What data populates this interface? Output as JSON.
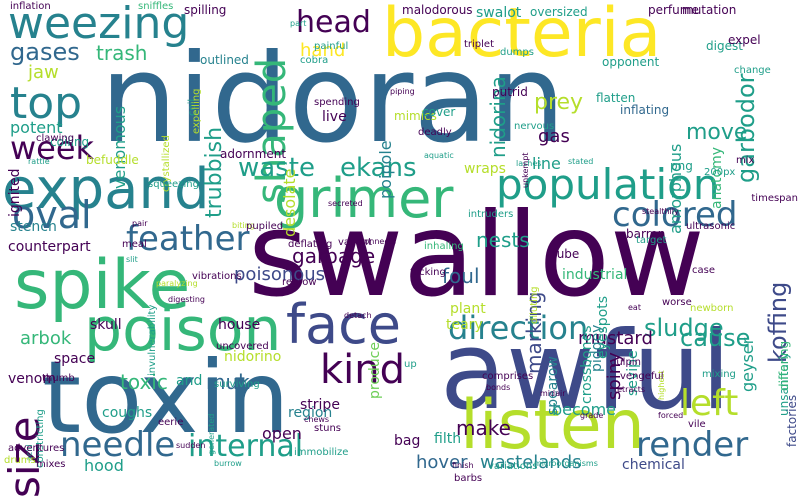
{
  "palette": {
    "dark_purple": "#440154",
    "indigo": "#3e4a89",
    "blue": "#31688e",
    "teal": "#26828e",
    "green_teal": "#1f9e89",
    "green": "#35b779",
    "lime": "#6ece58",
    "yellow_green": "#b5de2b",
    "yellow": "#fde725"
  },
  "words": [
    {
      "text": "nidoran",
      "color": "#31688e",
      "rotate": false
    },
    {
      "text": "swallow",
      "color": "#440154",
      "rotate": false
    },
    {
      "text": "awful",
      "color": "#3e4a89",
      "rotate": false
    },
    {
      "text": "toxin",
      "color": "#31688e",
      "rotate": false
    },
    {
      "text": "bacteria",
      "color": "#fde725",
      "rotate": false
    },
    {
      "text": "expand",
      "color": "#26828e",
      "rotate": false
    },
    {
      "text": "spike",
      "color": "#35b779",
      "rotate": false
    },
    {
      "text": "listen",
      "color": "#b5de2b",
      "rotate": false
    },
    {
      "text": "grimer",
      "color": "#35b779",
      "rotate": false
    },
    {
      "text": "poison",
      "color": "#35b779",
      "rotate": false
    },
    {
      "text": "population",
      "color": "#1f9e89",
      "rotate": false
    },
    {
      "text": "weezing",
      "color": "#26828e",
      "rotate": false
    },
    {
      "text": "face",
      "color": "#3e4a89",
      "rotate": false
    },
    {
      "text": "top",
      "color": "#26828e",
      "rotate": false
    },
    {
      "text": "size",
      "color": "#440154",
      "rotate": true
    },
    {
      "text": "colored",
      "color": "#31688e",
      "rotate": false
    },
    {
      "text": "shaped",
      "color": "#35b779",
      "rotate": true
    },
    {
      "text": "internal",
      "color": "#1f9e89",
      "rotate": false
    },
    {
      "text": "direction",
      "color": "#26828e",
      "rotate": false
    },
    {
      "text": "left",
      "color": "#b5de2b",
      "rotate": false
    },
    {
      "text": "needle",
      "color": "#31688e",
      "rotate": false
    },
    {
      "text": "kind",
      "color": "#440154",
      "rotate": false
    },
    {
      "text": "feather",
      "color": "#31688e",
      "rotate": false
    },
    {
      "text": "oval",
      "color": "#31688e",
      "rotate": false
    },
    {
      "text": "render",
      "color": "#31688e",
      "rotate": false
    },
    {
      "text": "head",
      "color": "#440154",
      "rotate": false
    },
    {
      "text": "week",
      "color": "#440154",
      "rotate": false
    },
    {
      "text": "waste",
      "color": "#1f9e89",
      "rotate": false
    },
    {
      "text": "ekans",
      "color": "#1f9e89",
      "rotate": false
    },
    {
      "text": "gases",
      "color": "#31688e",
      "rotate": false
    },
    {
      "text": "sludge",
      "color": "#1f9e89",
      "rotate": false
    },
    {
      "text": "trash",
      "color": "#35b779",
      "rotate": false
    },
    {
      "text": "hand",
      "color": "#fde725",
      "rotate": false
    },
    {
      "text": "move",
      "color": "#1f9e89",
      "rotate": false
    },
    {
      "text": "prey",
      "color": "#b5de2b",
      "rotate": false
    },
    {
      "text": "garbodor",
      "color": "#1f9e89",
      "rotate": true
    },
    {
      "text": "koffing",
      "color": "#3e4a89",
      "rotate": true
    },
    {
      "text": "cause",
      "color": "#1f9e89",
      "rotate": false
    },
    {
      "text": "garbage",
      "color": "#440154",
      "rotate": false
    },
    {
      "text": "poisonous",
      "color": "#3e4a89",
      "rotate": false
    },
    {
      "text": "arbok",
      "color": "#35b779",
      "rotate": false
    },
    {
      "text": "toxic",
      "color": "#35b779",
      "rotate": false
    },
    {
      "text": "muk",
      "color": "#31688e",
      "rotate": false
    },
    {
      "text": "make",
      "color": "#440154",
      "rotate": false
    },
    {
      "text": "hover",
      "color": "#31688e",
      "rotate": false
    },
    {
      "text": "wastelands",
      "color": "#26828e",
      "rotate": false
    },
    {
      "text": "foul",
      "color": "#31688e",
      "rotate": false
    },
    {
      "text": "nests",
      "color": "#1f9e89",
      "rotate": false
    },
    {
      "text": "marking",
      "color": "#3e4a89",
      "rotate": true
    },
    {
      "text": "mustard",
      "color": "#440154",
      "rotate": false
    },
    {
      "text": "spiny",
      "color": "#440154",
      "rotate": true
    },
    {
      "text": "nidorina",
      "color": "#1f9e89",
      "rotate": true
    },
    {
      "text": "trubbish",
      "color": "#1f9e89",
      "rotate": true
    },
    {
      "text": "desolate",
      "color": "#b5de2b",
      "rotate": true
    },
    {
      "text": "gas",
      "color": "#440154",
      "rotate": false
    },
    {
      "text": "line",
      "color": "#1f9e89",
      "rotate": false
    },
    {
      "text": "jaw",
      "color": "#b5de2b",
      "rotate": false
    },
    {
      "text": "potent",
      "color": "#1f9e89",
      "rotate": false
    },
    {
      "text": "venomous",
      "color": "#1f9e89",
      "rotate": true
    },
    {
      "text": "stench",
      "color": "#26828e",
      "rotate": false
    },
    {
      "text": "counterpart",
      "color": "#440154",
      "rotate": false
    },
    {
      "text": "skull",
      "color": "#440154",
      "rotate": false
    },
    {
      "text": "space",
      "color": "#440154",
      "rotate": false
    },
    {
      "text": "venom",
      "color": "#440154",
      "rotate": false
    },
    {
      "text": "house",
      "color": "#440154",
      "rotate": false
    },
    {
      "text": "nidorino",
      "color": "#b5de2b",
      "rotate": false
    },
    {
      "text": "and",
      "color": "#1f9e89",
      "rotate": false
    },
    {
      "text": "open",
      "color": "#440154",
      "rotate": false
    },
    {
      "text": "stripe",
      "color": "#440154",
      "rotate": false
    },
    {
      "text": "become",
      "color": "#1f9e89",
      "rotate": false
    },
    {
      "text": "bag",
      "color": "#440154",
      "rotate": false
    },
    {
      "text": "hood",
      "color": "#1f9e89",
      "rotate": false
    },
    {
      "text": "coughs",
      "color": "#1f9e89",
      "rotate": false
    },
    {
      "text": "region",
      "color": "#26828e",
      "rotate": false
    },
    {
      "text": "filth",
      "color": "#1f9e89",
      "rotate": false
    },
    {
      "text": "chemical",
      "color": "#3e4a89",
      "rotate": false
    },
    {
      "text": "produce",
      "color": "#6ece58",
      "rotate": true
    },
    {
      "text": "pidgey",
      "color": "#26828e",
      "rotate": true
    },
    {
      "text": "eyespots",
      "color": "#1f9e89",
      "rotate": true
    },
    {
      "text": "crossbones",
      "color": "#1f9e89",
      "rotate": true
    },
    {
      "text": "sevipe",
      "color": "#1f9e89",
      "rotate": true
    },
    {
      "text": "geyser",
      "color": "#1f9e89",
      "rotate": true
    },
    {
      "text": "spearow",
      "color": "#26828e",
      "rotate": true
    },
    {
      "text": "amorphous",
      "color": "#1f9e89",
      "rotate": true
    },
    {
      "text": "anatomy",
      "color": "#35b779",
      "rotate": true
    },
    {
      "text": "poipole",
      "color": "#26828e",
      "rotate": true
    },
    {
      "text": "live",
      "color": "#440154",
      "rotate": false
    },
    {
      "text": "wraps",
      "color": "#b5de2b",
      "rotate": false
    },
    {
      "text": "plant",
      "color": "#b5de2b",
      "rotate": false
    },
    {
      "text": "teary",
      "color": "#b5de2b",
      "rotate": false
    },
    {
      "text": "industrial",
      "color": "#35b779",
      "rotate": false
    },
    {
      "text": "unsanitary",
      "color": "#1f9e89",
      "rotate": true
    },
    {
      "text": "differing",
      "color": "#35b779",
      "rotate": true
    },
    {
      "text": "factories",
      "color": "#3e4a89",
      "rotate": true
    },
    {
      "text": "swalot",
      "color": "#1f9e89",
      "rotate": false
    },
    {
      "text": "putrid",
      "color": "#440154",
      "rotate": false
    },
    {
      "text": "inflating",
      "color": "#31688e",
      "rotate": false
    },
    {
      "text": "opponent",
      "color": "#1f9e89",
      "rotate": false
    },
    {
      "text": "digest",
      "color": "#1f9e89",
      "rotate": false
    },
    {
      "text": "expel",
      "color": "#440154",
      "rotate": false
    },
    {
      "text": "change",
      "color": "#1f9e89",
      "rotate": false
    },
    {
      "text": "perfume",
      "color": "#440154",
      "rotate": false
    },
    {
      "text": "mutation",
      "color": "#440154",
      "rotate": false
    },
    {
      "text": "malodorous",
      "color": "#440154",
      "rotate": false
    },
    {
      "text": "oversized",
      "color": "#1f9e89",
      "rotate": false
    },
    {
      "text": "triplet",
      "color": "#440154",
      "rotate": false
    },
    {
      "text": "dumps",
      "color": "#1f9e89",
      "rotate": false
    },
    {
      "text": "mimics",
      "color": "#b5de2b",
      "rotate": false
    },
    {
      "text": "cover",
      "color": "#1f9e89",
      "rotate": false
    },
    {
      "text": "deadly",
      "color": "#440154",
      "rotate": false
    },
    {
      "text": "inhaling",
      "color": "#35b779",
      "rotate": false
    },
    {
      "text": "aquatic",
      "color": "#1f9e89",
      "rotate": false
    },
    {
      "text": "nervous",
      "color": "#1f9e89",
      "rotate": false
    },
    {
      "text": "flatten",
      "color": "#1f9e89",
      "rotate": false
    },
    {
      "text": "piping",
      "color": "#440154",
      "rotate": false
    },
    {
      "text": "painful",
      "color": "#1f9e89",
      "rotate": false
    },
    {
      "text": "part",
      "color": "#1f9e89",
      "rotate": false
    },
    {
      "text": "cobra",
      "color": "#1f9e89",
      "rotate": false
    },
    {
      "text": "outlined",
      "color": "#26828e",
      "rotate": false
    },
    {
      "text": "spilling",
      "color": "#440154",
      "rotate": false
    },
    {
      "text": "inflation",
      "color": "#440154",
      "rotate": false
    },
    {
      "text": "coiling",
      "color": "#1f9e89",
      "rotate": false
    },
    {
      "text": "sniffles",
      "color": "#35b779",
      "rotate": false
    },
    {
      "text": "clawing",
      "color": "#440154",
      "rotate": false
    },
    {
      "text": "rattle",
      "color": "#1f9e89",
      "rotate": false
    },
    {
      "text": "befuddle",
      "color": "#b5de2b",
      "rotate": false
    },
    {
      "text": "crystallized",
      "color": "#b5de2b",
      "rotate": true
    },
    {
      "text": "coil",
      "color": "#1f9e89",
      "rotate": true
    },
    {
      "text": "expelling",
      "color": "#b5de2b",
      "rotate": true
    },
    {
      "text": "ignited",
      "color": "#440154",
      "rotate": true
    },
    {
      "text": "squeezing",
      "color": "#1f9e89",
      "rotate": false
    },
    {
      "text": "adornment",
      "color": "#440154",
      "rotate": false
    },
    {
      "text": "spending",
      "color": "#440154",
      "rotate": false
    },
    {
      "text": "lashes",
      "color": "#1f9e89",
      "rotate": false
    },
    {
      "text": "stated",
      "color": "#1f9e89",
      "rotate": false
    },
    {
      "text": "png",
      "color": "#1f9e89",
      "rotate": false
    },
    {
      "text": "mix",
      "color": "#440154",
      "rotate": false
    },
    {
      "text": "200px",
      "color": "#1f9e89",
      "rotate": false
    },
    {
      "text": "tube",
      "color": "#440154",
      "rotate": false
    },
    {
      "text": "barren",
      "color": "#440154",
      "rotate": false
    },
    {
      "text": "ultrasonic",
      "color": "#440154",
      "rotate": false
    },
    {
      "text": "stealthily",
      "color": "#440154",
      "rotate": false
    },
    {
      "text": "target",
      "color": "#1f9e89",
      "rotate": false
    },
    {
      "text": "timespan",
      "color": "#440154",
      "rotate": false
    },
    {
      "text": "unkempt",
      "color": "#440154",
      "rotate": true
    },
    {
      "text": "intruders",
      "color": "#1f9e89",
      "rotate": false
    },
    {
      "text": "secreted",
      "color": "#440154",
      "rotate": false
    },
    {
      "text": "pair",
      "color": "#440154",
      "rotate": false
    },
    {
      "text": "biting",
      "color": "#b5de2b",
      "rotate": false
    },
    {
      "text": "pupiled",
      "color": "#440154",
      "rotate": false
    },
    {
      "text": "deflating",
      "color": "#440154",
      "rotate": false
    },
    {
      "text": "vacant",
      "color": "#440154",
      "rotate": false
    },
    {
      "text": "connects",
      "color": "#440154",
      "rotate": false
    },
    {
      "text": "meal",
      "color": "#440154",
      "rotate": false
    },
    {
      "text": "slit",
      "color": "#1f9e89",
      "rotate": false
    },
    {
      "text": "invulnerability",
      "color": "#1f9e89",
      "rotate": true
    },
    {
      "text": "vibrations",
      "color": "#440154",
      "rotate": false
    },
    {
      "text": "regrow",
      "color": "#440154",
      "rotate": false
    },
    {
      "text": "flicking",
      "color": "#440154",
      "rotate": false
    },
    {
      "text": "diluting",
      "color": "#b5de2b",
      "rotate": true
    },
    {
      "text": "eat",
      "color": "#440154",
      "rotate": false
    },
    {
      "text": "case",
      "color": "#440154",
      "rotate": false
    },
    {
      "text": "worse",
      "color": "#440154",
      "rotate": false
    },
    {
      "text": "newborn",
      "color": "#b5de2b",
      "rotate": false
    },
    {
      "text": "detach",
      "color": "#440154",
      "rotate": false
    },
    {
      "text": "paralyzing",
      "color": "#b5de2b",
      "rotate": false
    },
    {
      "text": "digesting",
      "color": "#440154",
      "rotate": false
    },
    {
      "text": "uncovered",
      "color": "#440154",
      "rotate": false
    },
    {
      "text": "up",
      "color": "#1f9e89",
      "rotate": false
    },
    {
      "text": "comprises",
      "color": "#440154",
      "rotate": false
    },
    {
      "text": "gulpin",
      "color": "#440154",
      "rotate": false
    },
    {
      "text": "highest",
      "color": "#b5de2b",
      "rotate": true
    },
    {
      "text": "vengeful",
      "color": "#440154",
      "rotate": false
    },
    {
      "text": "midair",
      "color": "#440154",
      "rotate": false
    },
    {
      "text": "mixing",
      "color": "#1f9e89",
      "rotate": false
    },
    {
      "text": "thumb",
      "color": "#440154",
      "rotate": false
    },
    {
      "text": "surviving",
      "color": "#1f9e89",
      "rotate": false
    },
    {
      "text": "chews",
      "color": "#440154",
      "rotate": false
    },
    {
      "text": "stuns",
      "color": "#440154",
      "rotate": false
    },
    {
      "text": "constricting",
      "color": "#1f9e89",
      "rotate": true
    },
    {
      "text": "generated",
      "color": "#1f9e89",
      "rotate": true
    },
    {
      "text": "eerie",
      "color": "#440154",
      "rotate": false
    },
    {
      "text": "grade",
      "color": "#440154",
      "rotate": false
    },
    {
      "text": "acid",
      "color": "#1f9e89",
      "rotate": true
    },
    {
      "text": "sudden",
      "color": "#440154",
      "rotate": false
    },
    {
      "text": "immobilize",
      "color": "#1f9e89",
      "rotate": false
    },
    {
      "text": "bonds",
      "color": "#440154",
      "rotate": false
    },
    {
      "text": "retracts",
      "color": "#440154",
      "rotate": false
    },
    {
      "text": "forced",
      "color": "#440154",
      "rotate": false
    },
    {
      "text": "vile",
      "color": "#440154",
      "rotate": false
    },
    {
      "text": "adventures",
      "color": "#440154",
      "rotate": false
    },
    {
      "text": "drums",
      "color": "#b5de2b",
      "rotate": false
    },
    {
      "text": "mixes",
      "color": "#440154",
      "rotate": false
    },
    {
      "text": "burrow",
      "color": "#1f9e89",
      "rotate": false
    },
    {
      "text": "finish",
      "color": "#440154",
      "rotate": false
    },
    {
      "text": "barbs",
      "color": "#440154",
      "rotate": false
    },
    {
      "text": "microorganisms",
      "color": "#1f9e89",
      "rotate": false
    },
    {
      "text": "variations",
      "color": "#1f9e89",
      "rotate": false
    }
  ]
}
